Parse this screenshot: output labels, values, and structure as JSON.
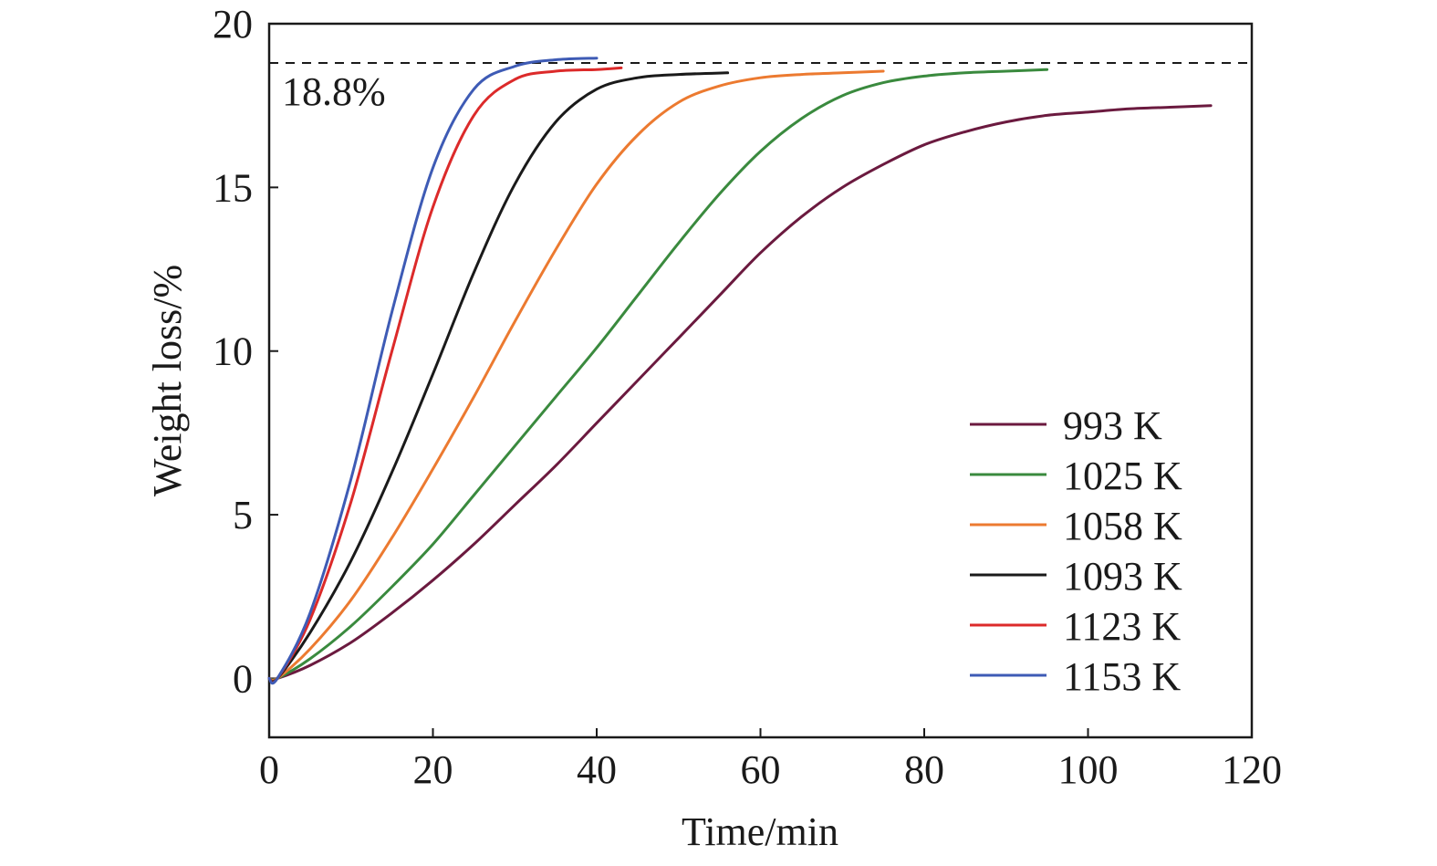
{
  "chart_data": {
    "type": "line",
    "xlabel": "Time/min",
    "ylabel": "Weight loss/%",
    "xlim": [
      0,
      120
    ],
    "ylim": [
      -1.8,
      20
    ],
    "xticks": [
      0,
      20,
      40,
      60,
      80,
      100,
      120
    ],
    "yticks": [
      0,
      5,
      10,
      15,
      20
    ],
    "grid": false,
    "legend_position": "bottom-right",
    "reference_line": {
      "y": 18.8,
      "style": "dashed",
      "label": "18.8%"
    },
    "series": [
      {
        "name": "993 K",
        "color": "#6b1a3f",
        "x": [
          0,
          1,
          5,
          10,
          15,
          20,
          25,
          30,
          35,
          40,
          45,
          50,
          55,
          60,
          65,
          70,
          75,
          80,
          85,
          90,
          95,
          100,
          105,
          110,
          115
        ],
        "y": [
          0,
          0,
          0.4,
          1.1,
          2.0,
          3.0,
          4.1,
          5.3,
          6.5,
          7.8,
          9.1,
          10.4,
          11.7,
          13.0,
          14.1,
          15.0,
          15.7,
          16.3,
          16.7,
          17.0,
          17.2,
          17.3,
          17.4,
          17.45,
          17.5
        ]
      },
      {
        "name": "1025 K",
        "color": "#3a8a3e",
        "x": [
          0,
          1,
          5,
          10,
          15,
          20,
          25,
          30,
          35,
          40,
          45,
          50,
          55,
          60,
          65,
          70,
          75,
          80,
          85,
          90,
          95
        ],
        "y": [
          0,
          0,
          0.6,
          1.6,
          2.8,
          4.1,
          5.6,
          7.1,
          8.6,
          10.1,
          11.7,
          13.3,
          14.8,
          16.1,
          17.1,
          17.8,
          18.2,
          18.4,
          18.5,
          18.55,
          18.6
        ]
      },
      {
        "name": "1058 K",
        "color": "#ec7a30",
        "x": [
          0,
          1,
          5,
          10,
          15,
          20,
          25,
          30,
          35,
          40,
          45,
          50,
          55,
          60,
          65,
          70,
          75
        ],
        "y": [
          0,
          0,
          0.9,
          2.4,
          4.3,
          6.4,
          8.6,
          10.9,
          13.1,
          15.1,
          16.6,
          17.6,
          18.1,
          18.35,
          18.45,
          18.5,
          18.55
        ]
      },
      {
        "name": "1093 K",
        "color": "#1a1a1a",
        "x": [
          0,
          1,
          5,
          10,
          15,
          20,
          25,
          30,
          35,
          40,
          45,
          50,
          56
        ],
        "y": [
          0,
          0,
          1.4,
          3.6,
          6.3,
          9.3,
          12.4,
          15.1,
          17.0,
          18.0,
          18.35,
          18.45,
          18.5
        ]
      },
      {
        "name": "1123 K",
        "color": "#dc2a2a",
        "x": [
          0,
          1,
          5,
          10,
          15,
          20,
          25,
          30,
          35,
          40,
          43
        ],
        "y": [
          0,
          0,
          1.8,
          5.4,
          10.0,
          14.4,
          17.2,
          18.3,
          18.55,
          18.6,
          18.65
        ]
      },
      {
        "name": "1153 K",
        "color": "#3e5bb5",
        "x": [
          0,
          1,
          5,
          10,
          15,
          20,
          25,
          30,
          35,
          40
        ],
        "y": [
          0,
          0,
          2.0,
          6.1,
          11.2,
          15.6,
          18.0,
          18.7,
          18.9,
          18.95
        ]
      }
    ]
  }
}
